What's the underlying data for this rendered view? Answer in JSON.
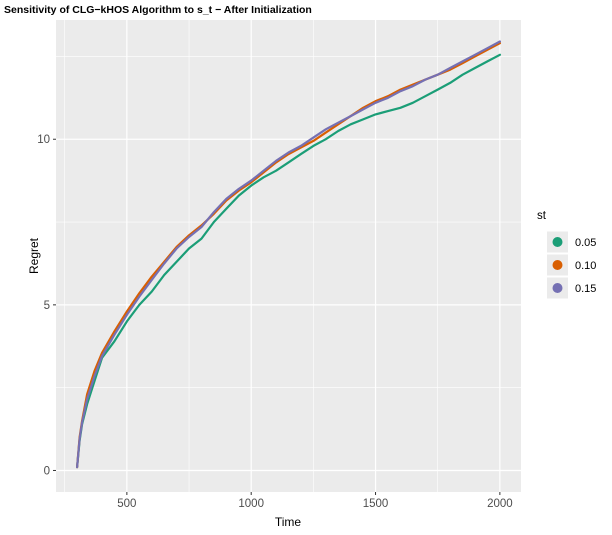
{
  "chart_data": {
    "type": "line",
    "title": "Sensitivity of CLG−kHOS Algorithm to s_t − After Initialization",
    "xlabel": "Time",
    "ylabel": "Regret",
    "xlim": [
      215,
      2085
    ],
    "ylim": [
      -0.65,
      13.6
    ],
    "x_ticks": [
      500,
      1000,
      1500,
      2000
    ],
    "x_tick_labels": [
      "500",
      "1000",
      "1500",
      "2000"
    ],
    "y_ticks": [
      0,
      5,
      10
    ],
    "y_tick_labels": [
      "0",
      "5",
      "10"
    ],
    "grid": true,
    "legend": {
      "title": "st",
      "position": "right"
    },
    "series": [
      {
        "name": "0.05",
        "color": "#1b9e77",
        "x": [
          300,
          310,
          320,
          340,
          370,
          400,
          450,
          500,
          550,
          600,
          650,
          700,
          750,
          800,
          850,
          900,
          950,
          1000,
          1050,
          1100,
          1150,
          1200,
          1250,
          1300,
          1350,
          1400,
          1450,
          1500,
          1550,
          1600,
          1650,
          1700,
          1750,
          1800,
          1850,
          1900,
          1950,
          2000
        ],
        "y": [
          0.1,
          0.9,
          1.4,
          2.0,
          2.7,
          3.4,
          3.9,
          4.5,
          5.0,
          5.4,
          5.9,
          6.3,
          6.7,
          7.0,
          7.5,
          7.9,
          8.3,
          8.6,
          8.85,
          9.05,
          9.3,
          9.55,
          9.8,
          10.0,
          10.25,
          10.45,
          10.6,
          10.75,
          10.85,
          10.95,
          11.1,
          11.3,
          11.5,
          11.7,
          11.95,
          12.15,
          12.35,
          12.55
        ]
      },
      {
        "name": "0.10",
        "color": "#d95f02",
        "x": [
          300,
          310,
          320,
          340,
          370,
          400,
          450,
          500,
          550,
          600,
          650,
          700,
          750,
          800,
          850,
          900,
          950,
          1000,
          1050,
          1100,
          1150,
          1200,
          1250,
          1300,
          1350,
          1400,
          1450,
          1500,
          1550,
          1600,
          1650,
          1700,
          1750,
          1800,
          1850,
          1900,
          1950,
          2000
        ],
        "y": [
          0.1,
          1.0,
          1.5,
          2.3,
          3.0,
          3.55,
          4.2,
          4.8,
          5.35,
          5.85,
          6.3,
          6.75,
          7.1,
          7.4,
          7.75,
          8.15,
          8.45,
          8.7,
          9.0,
          9.3,
          9.55,
          9.75,
          9.95,
          10.2,
          10.45,
          10.7,
          10.95,
          11.15,
          11.3,
          11.5,
          11.65,
          11.8,
          11.95,
          12.1,
          12.3,
          12.5,
          12.7,
          12.9
        ]
      },
      {
        "name": "0.15",
        "color": "#7570b3",
        "x": [
          300,
          310,
          320,
          340,
          370,
          400,
          450,
          500,
          550,
          600,
          650,
          700,
          750,
          800,
          850,
          900,
          950,
          1000,
          1050,
          1100,
          1150,
          1200,
          1250,
          1300,
          1350,
          1400,
          1450,
          1500,
          1550,
          1600,
          1650,
          1700,
          1750,
          1800,
          1850,
          1900,
          1950,
          2000
        ],
        "y": [
          0.1,
          0.95,
          1.45,
          2.15,
          2.85,
          3.45,
          4.1,
          4.7,
          5.25,
          5.75,
          6.25,
          6.7,
          7.05,
          7.35,
          7.8,
          8.2,
          8.5,
          8.75,
          9.05,
          9.35,
          9.6,
          9.8,
          10.05,
          10.3,
          10.5,
          10.7,
          10.9,
          11.1,
          11.25,
          11.45,
          11.6,
          11.8,
          11.95,
          12.15,
          12.35,
          12.55,
          12.75,
          12.95
        ]
      }
    ]
  }
}
